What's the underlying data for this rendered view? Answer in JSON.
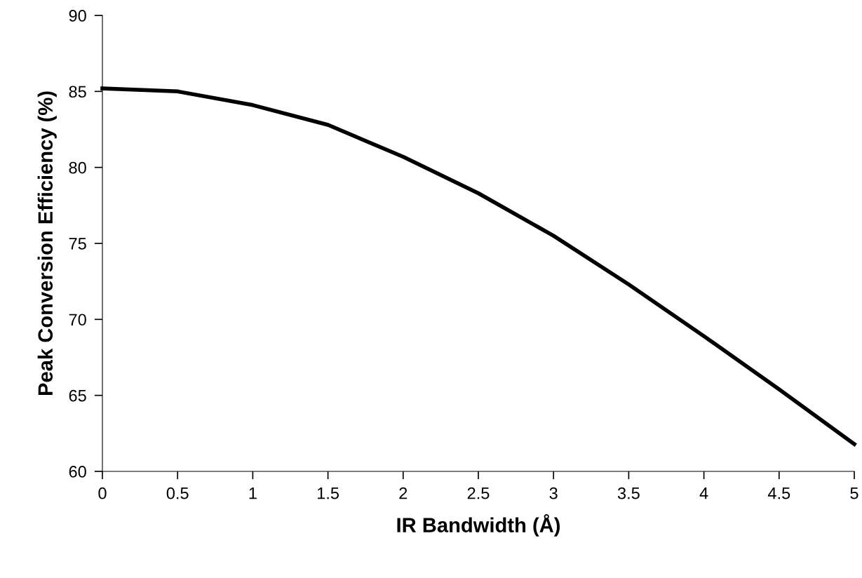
{
  "chart_data": {
    "type": "line",
    "xlabel": "IR Bandwidth (Å)",
    "ylabel": "Peak Conversion Efficiency (%)",
    "x": [
      0,
      0.5,
      1,
      1.5,
      2,
      2.5,
      3,
      3.5,
      4,
      4.5,
      5
    ],
    "series": [
      {
        "color": "#000000",
        "values": [
          85.2,
          85.0,
          84.1,
          82.8,
          80.7,
          78.3,
          75.5,
          72.3,
          68.9,
          65.4,
          61.8
        ]
      }
    ],
    "xlim": [
      0,
      5
    ],
    "xticks": [
      0,
      0.5,
      1,
      1.5,
      2,
      2.5,
      3,
      3.5,
      4,
      4.5,
      5
    ],
    "ylim": [
      60,
      90
    ],
    "yticks": [
      60,
      65,
      70,
      75,
      80,
      85,
      90
    ],
    "grid": false,
    "legend": false,
    "marker": "none",
    "line_style": "solid"
  }
}
